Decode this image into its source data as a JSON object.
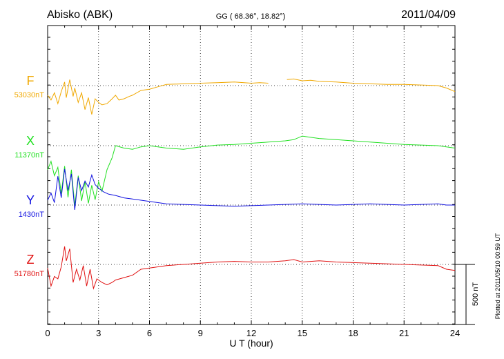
{
  "header": {
    "station": "Abisko (ABK)",
    "coords": "GG ( 68.36°,  18.82°)",
    "date": "2011/04/09"
  },
  "footer_note": "Plotted at 2011/05/10 00:59 UT",
  "chart_data": {
    "type": "line",
    "xlabel": "U T (hour)",
    "xlim": [
      0,
      24
    ],
    "xticks": [
      "0",
      "3",
      "6",
      "9",
      "12",
      "15",
      "18",
      "21",
      "24"
    ],
    "grid": true,
    "scale_bar": {
      "label": "500 nT",
      "value_nT": 500
    },
    "series": [
      {
        "name": "F",
        "baseline": "53030nT",
        "color": "#f0a800",
        "gap": [
          13.0,
          14.1
        ],
        "x": [
          0,
          0.2,
          0.4,
          0.6,
          0.8,
          1.0,
          1.1,
          1.3,
          1.5,
          1.6,
          1.8,
          2.0,
          2.2,
          2.4,
          2.6,
          2.8,
          3.0,
          3.2,
          3.5,
          3.8,
          4.0,
          4.2,
          4.5,
          4.8,
          5.0,
          5.5,
          6.0,
          6.5,
          7.0,
          8.0,
          9.0,
          10.0,
          11.0,
          12.0,
          12.5,
          13.0,
          14.1,
          14.5,
          15.0,
          15.5,
          16.0,
          17.0,
          18.0,
          19.0,
          20.0,
          21.0,
          22.0,
          23.0,
          23.5,
          24.0
        ],
        "y": [
          -80,
          -120,
          -60,
          -150,
          -50,
          30,
          -100,
          50,
          -90,
          -20,
          -140,
          -60,
          -200,
          -100,
          -240,
          -110,
          -140,
          -160,
          -150,
          -110,
          -80,
          -120,
          -110,
          -90,
          -80,
          -40,
          -30,
          -10,
          10,
          15,
          20,
          25,
          30,
          20,
          25,
          20,
          50,
          55,
          40,
          45,
          35,
          30,
          20,
          15,
          10,
          10,
          5,
          0,
          -20,
          -50
        ]
      },
      {
        "name": "X",
        "baseline": "11370nT",
        "color": "#20e020",
        "x": [
          0,
          0.2,
          0.4,
          0.6,
          0.8,
          1.0,
          1.2,
          1.4,
          1.6,
          1.8,
          2.0,
          2.2,
          2.4,
          2.6,
          2.8,
          3.0,
          3.2,
          3.5,
          3.8,
          4.0,
          4.5,
          5.0,
          5.5,
          6.0,
          7.0,
          8.0,
          9.0,
          10.0,
          11.0,
          12.0,
          13.0,
          14.0,
          14.5,
          15.0,
          16.0,
          17.0,
          18.0,
          19.0,
          20.0,
          21.0,
          22.0,
          23.0,
          24.0
        ],
        "y": [
          -200,
          -130,
          -250,
          -180,
          -400,
          -170,
          -430,
          -200,
          -500,
          -250,
          -460,
          -300,
          -480,
          -330,
          -450,
          -300,
          -380,
          -200,
          -100,
          0,
          -20,
          -30,
          -10,
          0,
          -20,
          -30,
          -10,
          5,
          10,
          20,
          30,
          40,
          50,
          80,
          60,
          50,
          40,
          30,
          20,
          10,
          5,
          0,
          -20
        ]
      },
      {
        "name": "Y",
        "baseline": "1430nT",
        "color": "#1010e0",
        "x": [
          0,
          0.2,
          0.4,
          0.6,
          0.8,
          1.0,
          1.2,
          1.4,
          1.6,
          1.8,
          2.0,
          2.2,
          2.4,
          2.6,
          2.8,
          3.0,
          3.3,
          3.6,
          4.0,
          4.5,
          5.0,
          5.5,
          6.0,
          6.5,
          7.0,
          8.0,
          9.0,
          10.0,
          11.0,
          12.0,
          13.0,
          14.0,
          15.0,
          16.0,
          17.0,
          18.0,
          19.0,
          20.0,
          21.0,
          22.0,
          23.0,
          23.5,
          24.0
        ],
        "y": [
          40,
          100,
          20,
          240,
          60,
          300,
          120,
          260,
          -40,
          230,
          120,
          200,
          150,
          250,
          170,
          140,
          110,
          90,
          80,
          60,
          50,
          40,
          30,
          20,
          10,
          5,
          0,
          -5,
          -10,
          -5,
          0,
          5,
          10,
          5,
          0,
          5,
          10,
          5,
          0,
          5,
          10,
          0,
          0
        ]
      },
      {
        "name": "Z",
        "baseline": "51780nT",
        "color": "#e01010",
        "x": [
          0,
          0.2,
          0.4,
          0.6,
          0.8,
          1.0,
          1.1,
          1.3,
          1.5,
          1.7,
          1.9,
          2.1,
          2.3,
          2.5,
          2.7,
          2.9,
          3.2,
          3.5,
          3.8,
          4.0,
          4.5,
          5.0,
          5.5,
          6.0,
          6.5,
          7.0,
          8.0,
          9.0,
          10.0,
          11.0,
          12.0,
          13.0,
          14.0,
          14.5,
          15.0,
          16.0,
          17.0,
          18.0,
          19.0,
          20.0,
          21.0,
          22.0,
          23.0,
          23.5,
          24.0
        ],
        "y": [
          -30,
          -180,
          -100,
          -120,
          -20,
          150,
          30,
          130,
          -150,
          -40,
          -130,
          -10,
          -180,
          -40,
          -200,
          -120,
          -150,
          -170,
          -150,
          -130,
          -110,
          -90,
          -40,
          -30,
          -20,
          -10,
          0,
          10,
          20,
          25,
          20,
          20,
          30,
          40,
          20,
          30,
          20,
          15,
          10,
          5,
          0,
          -5,
          -10,
          -40,
          -50
        ]
      }
    ]
  }
}
